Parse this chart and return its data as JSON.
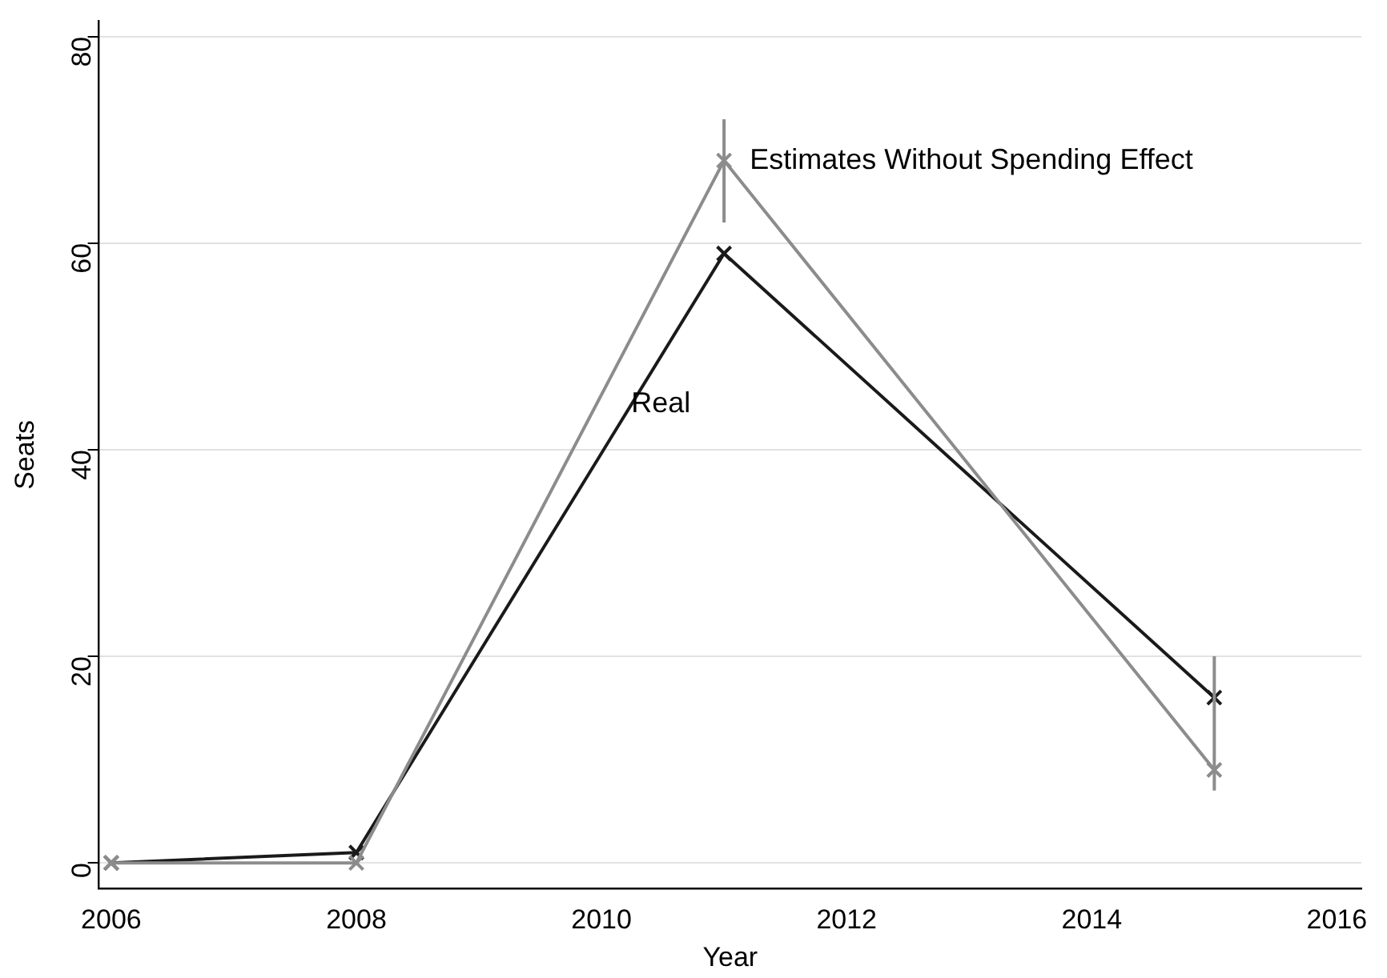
{
  "chart_data": {
    "type": "line",
    "xlabel": "Year",
    "ylabel": "Seats",
    "x": [
      2006,
      2008,
      2011,
      2015
    ],
    "series": [
      {
        "name": "Estimates Without Spending Effect",
        "color": "#8c8c8c",
        "values": [
          0,
          0,
          68,
          9
        ],
        "errors": [
          null,
          null,
          [
            62,
            72
          ],
          [
            7,
            20
          ]
        ]
      },
      {
        "name": "Real",
        "color": "#1a1a1a",
        "values": [
          0,
          1,
          59,
          16
        ]
      }
    ],
    "xlim": [
      2005.9,
      2016.2
    ],
    "xticks": [
      2006,
      2008,
      2010,
      2012,
      2014,
      2016
    ],
    "ylim": [
      -2.5,
      81.5
    ],
    "yticks": [
      0,
      20,
      40,
      60,
      80
    ],
    "grid": "y",
    "legend": false,
    "marker": "cross",
    "line_style": "solid"
  }
}
